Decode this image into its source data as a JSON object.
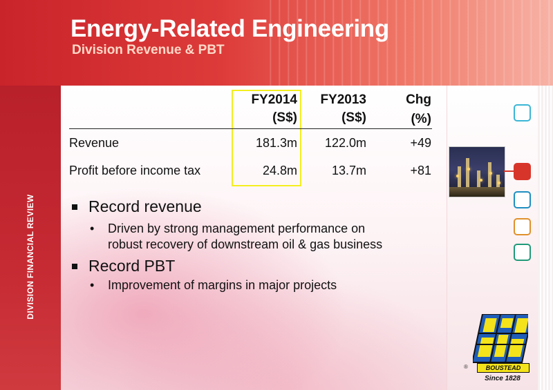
{
  "header": {
    "title": "Energy-Related Engineering",
    "subtitle": "Division Revenue & PBT"
  },
  "sidebar": {
    "label": "DIVISION FINANCIAL REVIEW"
  },
  "table": {
    "columns": [
      {
        "line1": "FY2014",
        "line2": "(S$)"
      },
      {
        "line1": "FY2013",
        "line2": "(S$)"
      },
      {
        "line1": "Chg",
        "line2": "(%)"
      }
    ],
    "rows": [
      {
        "label": "Revenue",
        "fy2014": "181.3m",
        "fy2013": "122.0m",
        "chg": "+49"
      },
      {
        "label": "Profit before income tax",
        "fy2014": "24.8m",
        "fy2013": "13.7m",
        "chg": "+81"
      }
    ]
  },
  "bullets": [
    {
      "text": "Record revenue",
      "sub": [
        "Driven by strong management performance on",
        "robust recovery of downstream oil & gas business"
      ]
    },
    {
      "text": "Record PBT",
      "sub": [
        "Improvement of margins in major projects"
      ]
    }
  ],
  "nav": {
    "square_colors": [
      "#3ab6d6",
      "#d8352a",
      "#1f8fc1",
      "#e0902a",
      "#1f9a78"
    ],
    "active_index": 1
  },
  "logo": {
    "name": "BOUSTEAD",
    "since": "Since 1828",
    "registered": "®",
    "icon": "globe-logo-icon"
  },
  "highlight_color": "#f3ee1e"
}
